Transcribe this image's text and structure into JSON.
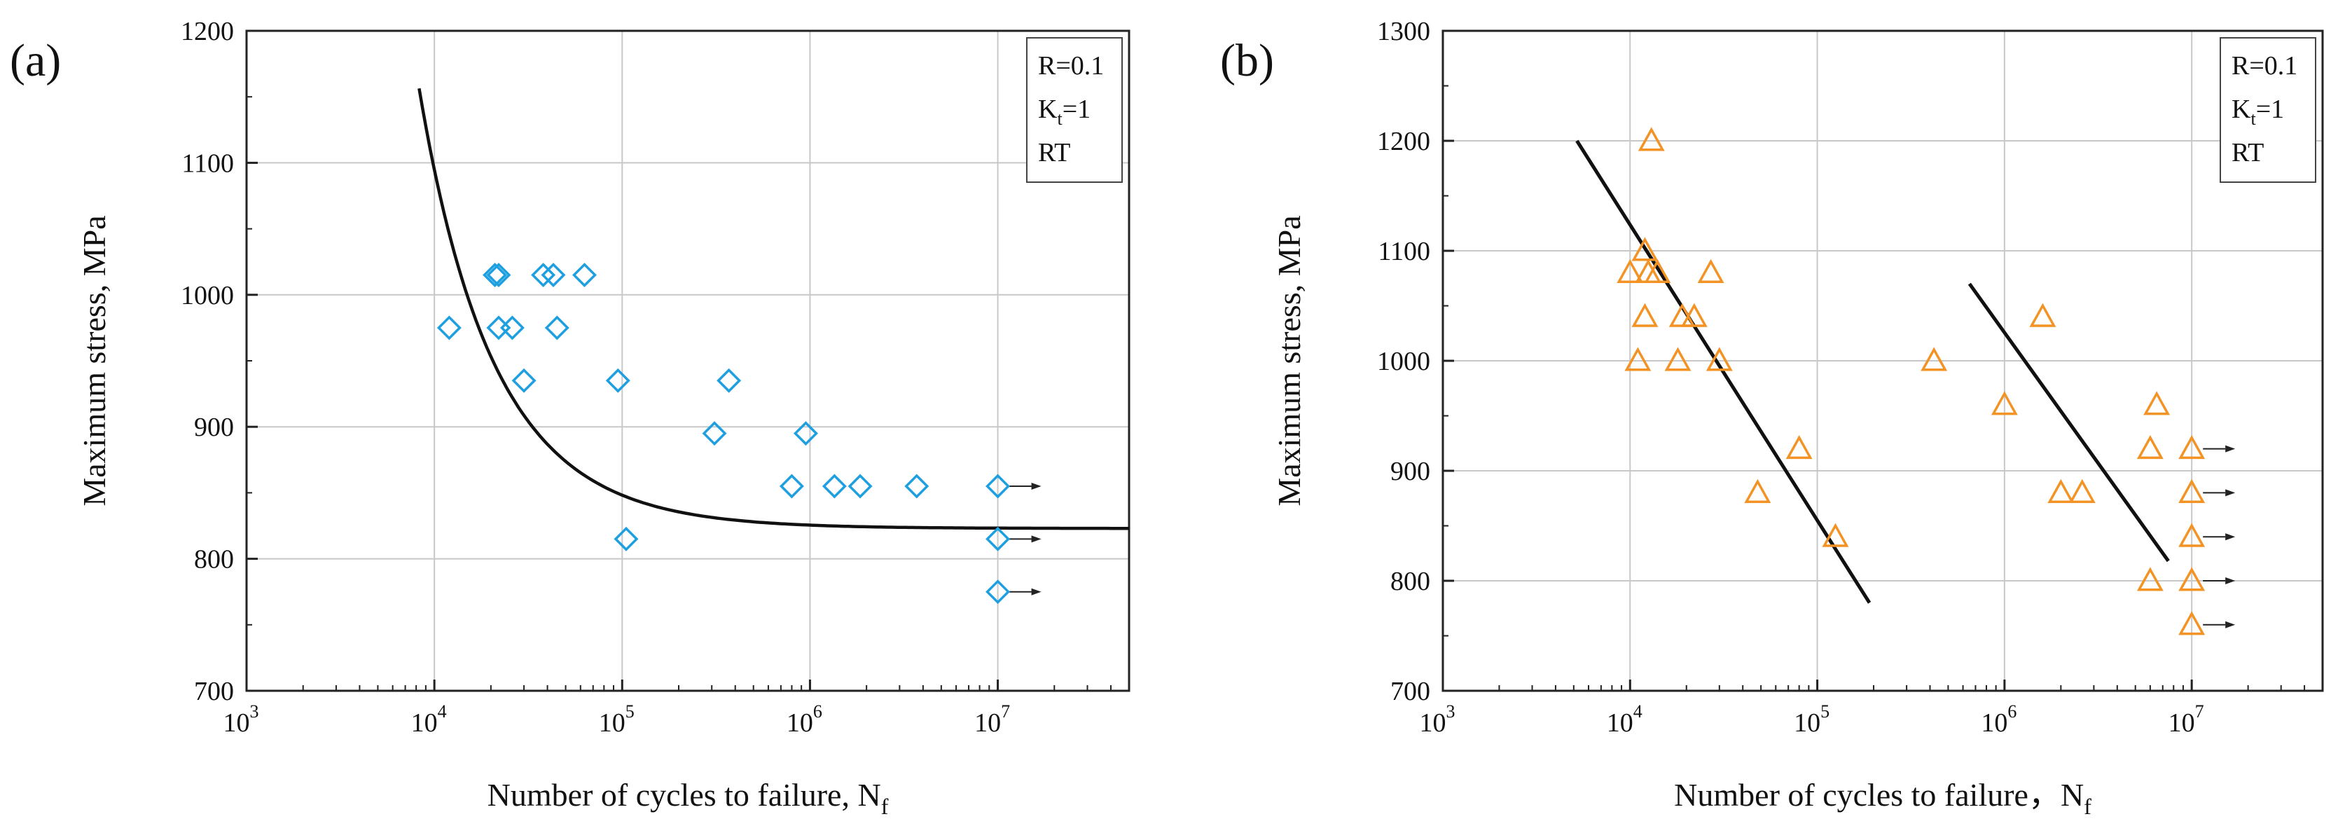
{
  "chart_data": [
    {
      "type": "scatter",
      "panel_label": "(a)",
      "xlabel": "Number of cycles to failure, N",
      "xlabel_sub": "f",
      "ylabel": "Maximum stress, MPa",
      "x_scale": "log",
      "xlim": [
        1000,
        50000000
      ],
      "ylim": [
        700,
        1200
      ],
      "x_ticks": [
        {
          "exp": 3,
          "base": "10",
          "power": "3"
        },
        {
          "exp": 4,
          "base": "10",
          "power": "4"
        },
        {
          "exp": 5,
          "base": "10",
          "power": "5"
        },
        {
          "exp": 6,
          "base": "10",
          "power": "6"
        },
        {
          "exp": 7,
          "base": "10",
          "power": "7"
        }
      ],
      "y_ticks": [
        {
          "value": 700,
          "label": "700"
        },
        {
          "value": 800,
          "label": "800"
        },
        {
          "value": 900,
          "label": "900"
        },
        {
          "value": 1000,
          "label": "1000"
        },
        {
          "value": 1100,
          "label": "1100"
        },
        {
          "value": 1200,
          "label": "1200"
        }
      ],
      "grid": true,
      "legend_box": {
        "position": "top-right",
        "lines": [
          {
            "main": "R=0.1",
            "sub": ""
          },
          {
            "main": "K",
            "sub": "t",
            "tail": "=1"
          },
          {
            "main": "RT",
            "sub": ""
          }
        ]
      },
      "marker": "diamond",
      "marker_color": "#1E9FE0",
      "points": [
        {
          "x": 12000,
          "y": 975
        },
        {
          "x": 21000,
          "y": 1015
        },
        {
          "x": 22000,
          "y": 1015
        },
        {
          "x": 22000,
          "y": 975
        },
        {
          "x": 26000,
          "y": 975
        },
        {
          "x": 30000,
          "y": 935
        },
        {
          "x": 38000,
          "y": 1015
        },
        {
          "x": 43000,
          "y": 1015
        },
        {
          "x": 45000,
          "y": 975
        },
        {
          "x": 63000,
          "y": 1015
        },
        {
          "x": 95000,
          "y": 935
        },
        {
          "x": 105000,
          "y": 815
        },
        {
          "x": 310000,
          "y": 895
        },
        {
          "x": 370000,
          "y": 935
        },
        {
          "x": 800000,
          "y": 855
        },
        {
          "x": 950000,
          "y": 895
        },
        {
          "x": 1350000,
          "y": 855
        },
        {
          "x": 1850000,
          "y": 855
        },
        {
          "x": 3700000,
          "y": 855
        },
        {
          "x": 10000000,
          "y": 855
        },
        {
          "x": 10000000,
          "y": 815
        },
        {
          "x": 10000000,
          "y": 775
        }
      ],
      "runouts": [
        {
          "x": 10000000,
          "y": 855
        },
        {
          "x": 10000000,
          "y": 815
        },
        {
          "x": 10000000,
          "y": 775
        }
      ],
      "fit_curve": {
        "description": "S = S_inf + A / (N - N0)",
        "S_inf": 823,
        "A": 2500000,
        "N0": 800,
        "x_start": 8300,
        "x_end": 50000000
      }
    },
    {
      "type": "scatter",
      "panel_label": "(b)",
      "xlabel": "Number of cycles to failure，N",
      "xlabel_sub": "f",
      "ylabel": "Maximum stress, MPa",
      "x_scale": "log",
      "xlim": [
        1000,
        50000000
      ],
      "ylim": [
        700,
        1300
      ],
      "x_ticks": [
        {
          "exp": 3,
          "base": "10",
          "power": "3"
        },
        {
          "exp": 4,
          "base": "10",
          "power": "4"
        },
        {
          "exp": 5,
          "base": "10",
          "power": "5"
        },
        {
          "exp": 6,
          "base": "10",
          "power": "6"
        },
        {
          "exp": 7,
          "base": "10",
          "power": "7"
        }
      ],
      "y_ticks": [
        {
          "value": 700,
          "label": "700"
        },
        {
          "value": 800,
          "label": "800"
        },
        {
          "value": 900,
          "label": "900"
        },
        {
          "value": 1000,
          "label": "1000"
        },
        {
          "value": 1100,
          "label": "1100"
        },
        {
          "value": 1200,
          "label": "1200"
        },
        {
          "value": 1300,
          "label": "1300"
        }
      ],
      "grid": true,
      "legend_box": {
        "position": "top-right",
        "lines": [
          {
            "main": "R=0.1",
            "sub": ""
          },
          {
            "main": "K",
            "sub": "t",
            "tail": "=1"
          },
          {
            "main": "RT",
            "sub": ""
          }
        ]
      },
      "marker": "triangle",
      "marker_color": "#F39325",
      "points": [
        {
          "x": 10000,
          "y": 1080
        },
        {
          "x": 11000,
          "y": 1000
        },
        {
          "x": 12000,
          "y": 1100
        },
        {
          "x": 12000,
          "y": 1040
        },
        {
          "x": 12500,
          "y": 1080
        },
        {
          "x": 13000,
          "y": 1200
        },
        {
          "x": 14000,
          "y": 1080
        },
        {
          "x": 18000,
          "y": 1000
        },
        {
          "x": 19000,
          "y": 1040
        },
        {
          "x": 22000,
          "y": 1040
        },
        {
          "x": 27000,
          "y": 1080
        },
        {
          "x": 30000,
          "y": 1000
        },
        {
          "x": 48000,
          "y": 880
        },
        {
          "x": 80000,
          "y": 920
        },
        {
          "x": 125000,
          "y": 840
        },
        {
          "x": 420000,
          "y": 1000
        },
        {
          "x": 1000000,
          "y": 960
        },
        {
          "x": 1600000,
          "y": 1040
        },
        {
          "x": 2000000,
          "y": 880
        },
        {
          "x": 2600000,
          "y": 880
        },
        {
          "x": 6000000,
          "y": 920
        },
        {
          "x": 6000000,
          "y": 800
        },
        {
          "x": 6500000,
          "y": 960
        },
        {
          "x": 10000000,
          "y": 920
        },
        {
          "x": 10000000,
          "y": 880
        },
        {
          "x": 10000000,
          "y": 840
        },
        {
          "x": 10000000,
          "y": 800
        },
        {
          "x": 10000000,
          "y": 760
        }
      ],
      "runouts": [
        {
          "x": 10000000,
          "y": 920
        },
        {
          "x": 10000000,
          "y": 880
        },
        {
          "x": 10000000,
          "y": 840
        },
        {
          "x": 10000000,
          "y": 800
        },
        {
          "x": 10000000,
          "y": 760
        }
      ],
      "fit_lines": [
        {
          "x1": 5200,
          "y1": 1200,
          "x2": 190000,
          "y2": 780
        },
        {
          "x1": 650000,
          "y1": 1070,
          "x2": 7500000,
          "y2": 818
        }
      ]
    }
  ]
}
